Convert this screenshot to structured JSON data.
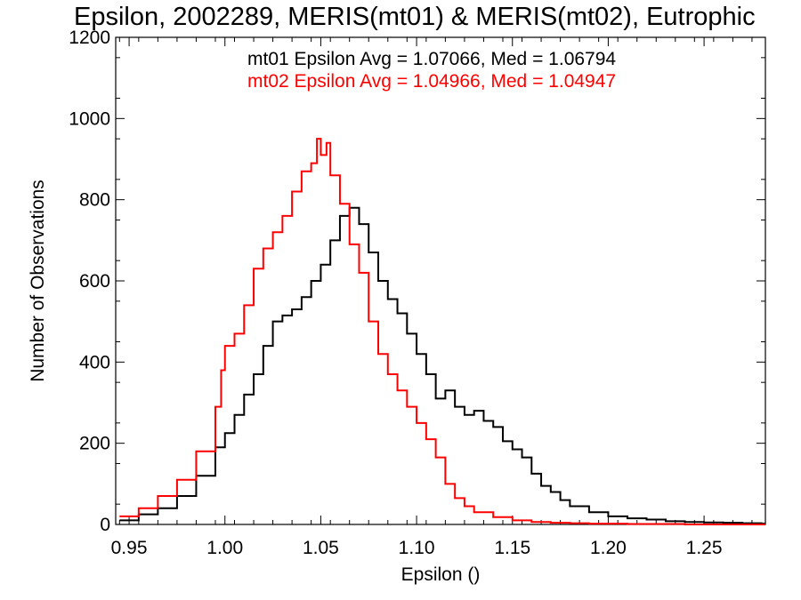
{
  "chart_data": {
    "type": "line",
    "title": "Epsilon, 2002289, MERIS(mt01) & MERIS(mt02), Eutrophic",
    "xlabel": "Epsilon ()",
    "ylabel": "Number of Observations",
    "xlim": [
      0.943,
      1.282
    ],
    "ylim": [
      0,
      1200
    ],
    "xticks": [
      "0.95",
      "1.00",
      "1.05",
      "1.10",
      "1.15",
      "1.20",
      "1.25"
    ],
    "yticks": [
      "0",
      "200",
      "400",
      "600",
      "800",
      "1000",
      "1200"
    ],
    "annotations": [
      {
        "text": "mt01 Epsilon Avg = 1.07066, Med = 1.06794",
        "color": "#000000"
      },
      {
        "text": "mt02 Epsilon Avg = 1.04966, Med = 1.04947",
        "color": "#ff0000"
      }
    ],
    "series": [
      {
        "color": "#000000",
        "x": [
          0.945,
          0.955,
          0.965,
          0.975,
          0.985,
          0.995,
          1.0,
          1.005,
          1.01,
          1.015,
          1.02,
          1.025,
          1.03,
          1.035,
          1.04,
          1.045,
          1.05,
          1.055,
          1.06,
          1.065,
          1.07,
          1.075,
          1.08,
          1.085,
          1.09,
          1.095,
          1.1,
          1.105,
          1.11,
          1.115,
          1.12,
          1.125,
          1.13,
          1.135,
          1.14,
          1.145,
          1.15,
          1.155,
          1.16,
          1.165,
          1.17,
          1.175,
          1.18,
          1.19,
          1.2,
          1.21,
          1.22,
          1.23,
          1.24,
          1.25,
          1.26,
          1.27,
          1.28
        ],
        "y": [
          10,
          25,
          40,
          70,
          120,
          190,
          225,
          270,
          320,
          370,
          440,
          500,
          515,
          530,
          560,
          600,
          640,
          700,
          760,
          780,
          740,
          670,
          600,
          555,
          520,
          470,
          420,
          370,
          310,
          330,
          290,
          270,
          280,
          255,
          240,
          205,
          185,
          165,
          125,
          95,
          80,
          60,
          45,
          30,
          20,
          15,
          12,
          8,
          6,
          5,
          4,
          3,
          2
        ]
      },
      {
        "color": "#ff0000",
        "x": [
          0.945,
          0.955,
          0.965,
          0.975,
          0.985,
          0.995,
          0.998,
          1.0,
          1.005,
          1.01,
          1.015,
          1.02,
          1.025,
          1.03,
          1.035,
          1.04,
          1.045,
          1.048,
          1.05,
          1.053,
          1.055,
          1.06,
          1.065,
          1.07,
          1.075,
          1.08,
          1.085,
          1.09,
          1.095,
          1.1,
          1.105,
          1.11,
          1.115,
          1.12,
          1.125,
          1.13,
          1.14,
          1.15,
          1.16,
          1.17,
          1.18,
          1.19,
          1.2,
          1.21,
          1.22,
          1.23,
          1.24,
          1.25
        ],
        "y": [
          20,
          40,
          70,
          110,
          180,
          290,
          380,
          440,
          470,
          540,
          630,
          680,
          720,
          760,
          820,
          870,
          890,
          950,
          910,
          940,
          860,
          790,
          690,
          620,
          500,
          420,
          370,
          330,
          290,
          250,
          210,
          165,
          100,
          65,
          45,
          30,
          18,
          10,
          6,
          4,
          3,
          2,
          2,
          1,
          1,
          1,
          0,
          0
        ]
      }
    ]
  }
}
